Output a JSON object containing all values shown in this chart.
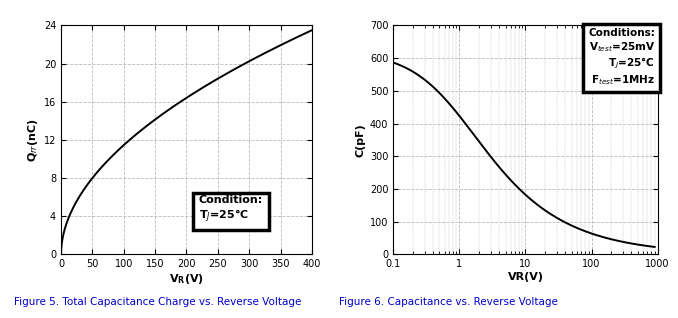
{
  "fig5": {
    "title": "Figure 5. Total Capacitance Charge vs. Reverse Voltage",
    "xlabel_main": "V",
    "xlabel_sub": "R",
    "xlabel_unit": "(V)",
    "ylabel": "Q$_{rr}$(nC)",
    "xlim": [
      0,
      400
    ],
    "ylim": [
      0,
      24
    ],
    "xticks": [
      0,
      50,
      100,
      150,
      200,
      250,
      300,
      350,
      400
    ],
    "yticks": [
      0,
      4,
      8,
      12,
      16,
      20,
      24
    ],
    "legend_text": "Condition:\nT$_J$=25°C",
    "line_color": "#000000",
    "grid_color": "#bbbbbb"
  },
  "fig6": {
    "title": "Figure 6. Capacitance vs. Reverse Voltage",
    "xlabel": "VR(V)",
    "ylabel": "C(pF)",
    "xlim_log": [
      0.1,
      1000
    ],
    "ylim": [
      0,
      700
    ],
    "yticks": [
      0,
      100,
      200,
      300,
      400,
      500,
      600,
      700
    ],
    "legend_title": "Conditions:",
    "legend_lines": [
      "V$_{test}$=25mV",
      "T$_J$=25°C",
      "F$_{test}$=1MHz"
    ],
    "line_color": "#000000",
    "grid_color": "#bbbbbb"
  },
  "background_color": "#ffffff",
  "fig_caption_fontsize": 7.5,
  "caption_color": "#0000cc"
}
